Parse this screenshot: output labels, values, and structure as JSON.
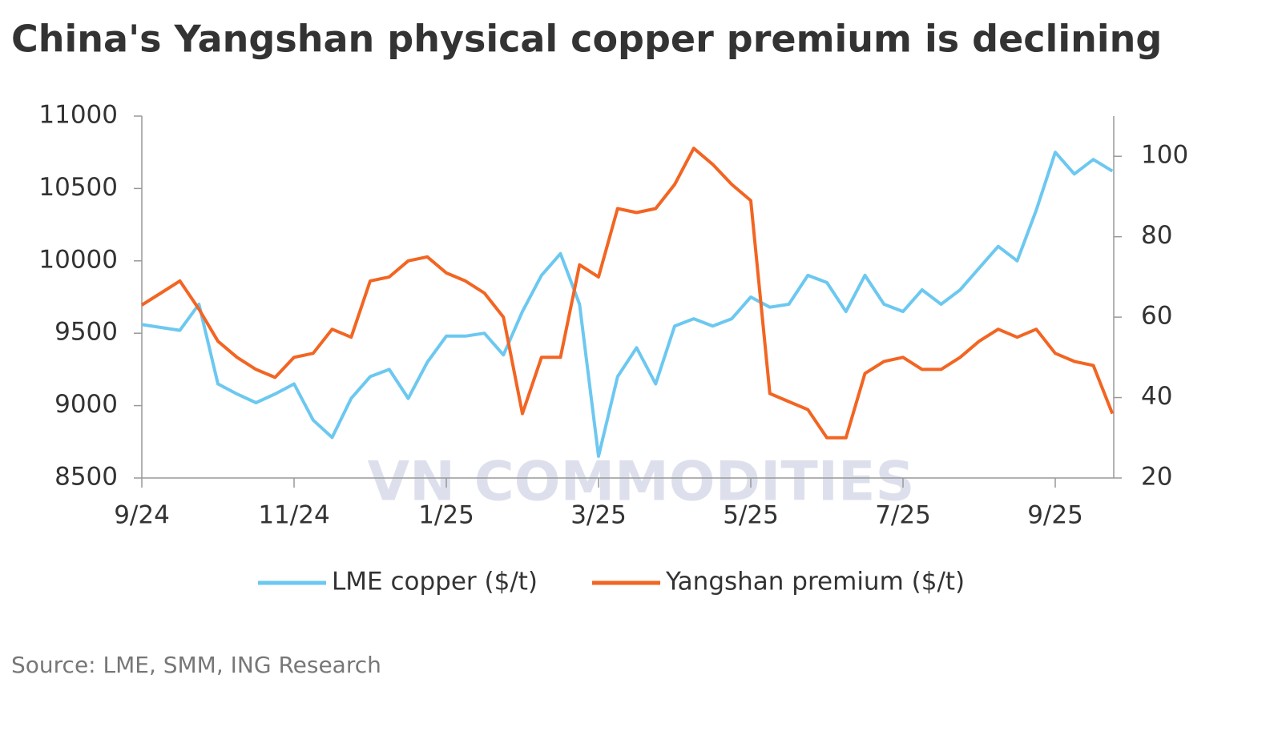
{
  "chart_data": {
    "type": "line",
    "title": "China's Yangshan physical copper premium is declining",
    "source": "Source: LME, SMM, ING Research",
    "watermark": "VN COMMODITIES",
    "categories": [
      "9/24",
      null,
      null,
      null,
      null,
      null,
      null,
      null,
      "11/24",
      null,
      null,
      null,
      null,
      null,
      null,
      null,
      "1/25",
      null,
      null,
      null,
      null,
      null,
      null,
      null,
      "3/25",
      null,
      null,
      null,
      null,
      null,
      null,
      null,
      "5/25",
      null,
      null,
      null,
      null,
      null,
      null,
      null,
      "7/25",
      null,
      null,
      null,
      null,
      null,
      null,
      null,
      "9/25",
      null,
      null,
      null
    ],
    "series": [
      {
        "name": "LME copper ($/t)",
        "color": "#6cc8f0",
        "axis": "y",
        "values": [
          9560,
          9540,
          9520,
          9700,
          9150,
          9080,
          9020,
          9080,
          9150,
          8900,
          8780,
          9050,
          9200,
          9250,
          9050,
          9300,
          9480,
          9480,
          9500,
          9350,
          9650,
          9900,
          10050,
          9700,
          8650,
          9200,
          9400,
          9150,
          9550,
          9600,
          9550,
          9600,
          9750,
          9680,
          9700,
          9900,
          9850,
          9650,
          9900,
          9700,
          9650,
          9800,
          9700,
          9800,
          9950,
          10100,
          10000,
          10350,
          10750,
          10600,
          10700,
          10620
        ]
      },
      {
        "name": "Yangshan premium ($/t)",
        "color": "#f26522",
        "axis": "y2",
        "values": [
          63,
          66,
          69,
          62,
          54,
          50,
          47,
          45,
          50,
          51,
          57,
          55,
          69,
          70,
          74,
          75,
          71,
          69,
          66,
          60,
          36,
          50,
          50,
          73,
          70,
          87,
          86,
          87,
          93,
          102,
          98,
          93,
          89,
          41,
          39,
          37,
          30,
          30,
          46,
          49,
          50,
          47,
          47,
          50,
          54,
          57,
          55,
          57,
          51,
          49,
          48,
          36
        ]
      }
    ],
    "ylim": [
      8500,
      11000
    ],
    "yticks": [
      8500,
      9000,
      9500,
      10000,
      10500,
      11000
    ],
    "y2lim": [
      20,
      110
    ],
    "y2ticks": [
      20,
      40,
      60,
      80,
      100
    ],
    "grid": false,
    "legend": "bottom"
  }
}
